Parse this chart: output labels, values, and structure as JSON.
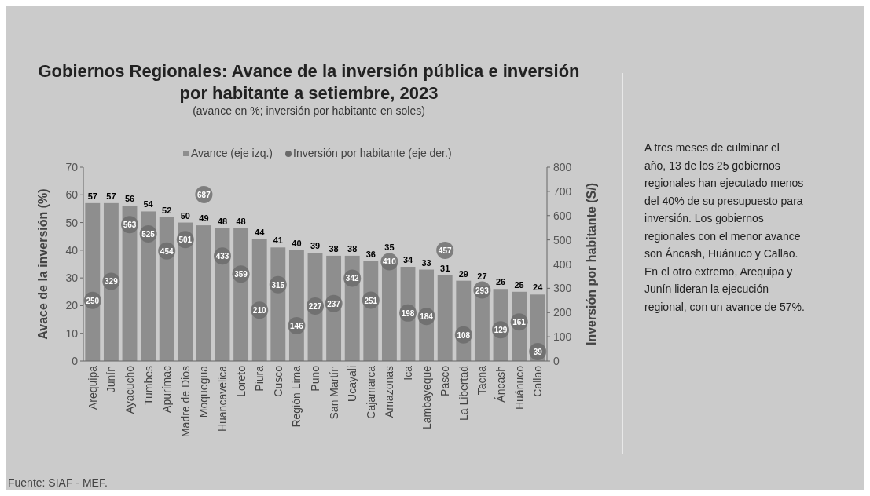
{
  "chart_data": {
    "type": "bar",
    "title": "Gobiernos Regionales: Avance de la inversión pública e inversión por habitante a setiembre, 2023",
    "subtitle": "(avance en %; inversión por habitante en soles)",
    "ylabel": "Avace de la inversión  (%)",
    "y2label": "Inversión por habitante (S/)",
    "categories": [
      "Arequipa",
      "Junín",
      "Ayacucho",
      "Tumbes",
      "Apurímac",
      "Madre de Dios",
      "Moquegua",
      "Huancavelica",
      "Loreto",
      "Piura",
      "Cusco",
      "Región Lima",
      "Puno",
      "San Martín",
      "Ucayali",
      "Cajamarca",
      "Amazonas",
      "Ica",
      "Lambayeque",
      "Pasco",
      "La Libertad",
      "Tacna",
      "Áncash",
      "Huánuco",
      "Callao"
    ],
    "series": [
      {
        "name": "Avance (eje izq.)",
        "color": "#8e8e8e",
        "values": [
          57,
          57,
          56,
          54,
          52,
          50,
          49,
          48,
          48,
          44,
          41,
          40,
          39,
          38,
          38,
          36,
          35,
          34,
          33,
          31,
          29,
          27,
          26,
          25,
          24
        ]
      },
      {
        "name": "Inversión por habitante (eje der.)",
        "type": "scatter",
        "axis": "y2",
        "marker": "circle",
        "color": "#6a6a6a",
        "values": [
          250,
          329,
          563,
          525,
          454,
          501,
          687,
          433,
          359,
          210,
          315,
          146,
          227,
          237,
          342,
          251,
          410,
          198,
          184,
          457,
          108,
          293,
          129,
          161,
          39
        ]
      }
    ],
    "ylim": [
      0,
      70
    ],
    "yticks": [
      0,
      10,
      20,
      30,
      40,
      50,
      60,
      70
    ],
    "y2lim": [
      0,
      800
    ],
    "y2ticks": [
      0,
      100,
      200,
      300,
      400,
      500,
      600,
      700,
      800
    ],
    "data_labels": true,
    "legend": "top",
    "grid": false,
    "annotations": [
      "A tres meses de culminar el año, 13 de los 25 gobiernos regionales han ejecutado menos del 40% de su presupuesto para inversión. Los gobiernos regionales con el menor avance son Áncash, Huánuco y Callao. En el otro extremo, Arequipa y Junín lideran la ejecución regional, con un avance de 57%.",
      "Fuente: SIAF - MEF."
    ]
  }
}
